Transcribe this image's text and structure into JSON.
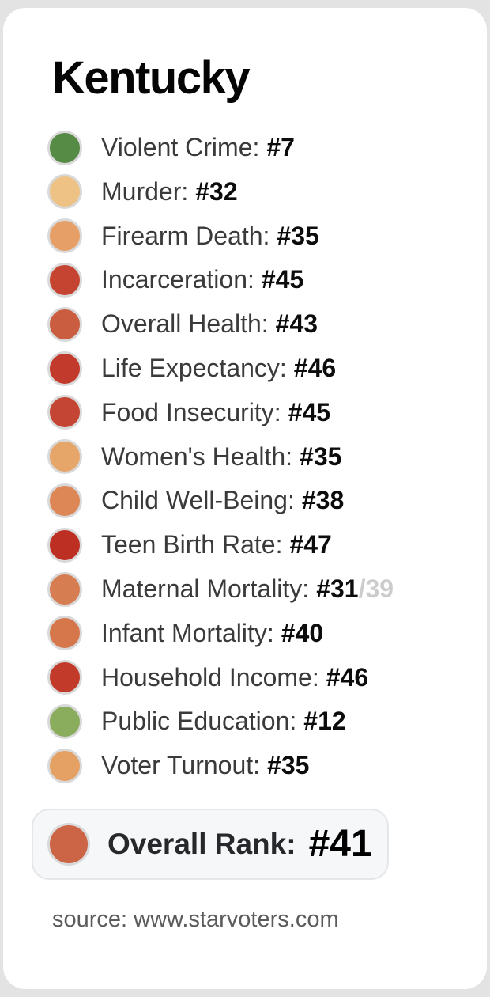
{
  "card": {
    "title": "Kentucky",
    "metrics": [
      {
        "label": "Violent Crime:",
        "rank": "#7",
        "color": "#568b45"
      },
      {
        "label": "Murder:",
        "rank": "#32",
        "color": "#eec284"
      },
      {
        "label": "Firearm Death:",
        "rank": "#35",
        "color": "#e6a067"
      },
      {
        "label": "Incarceration:",
        "rank": "#45",
        "color": "#c54431"
      },
      {
        "label": "Overall Health:",
        "rank": "#43",
        "color": "#ca5d40"
      },
      {
        "label": "Life Expectancy:",
        "rank": "#46",
        "color": "#c23a2b"
      },
      {
        "label": "Food Insecurity:",
        "rank": "#45",
        "color": "#c44533"
      },
      {
        "label": "Women's Health:",
        "rank": "#35",
        "color": "#e6a569"
      },
      {
        "label": "Child Well-Being:",
        "rank": "#38",
        "color": "#dd8756"
      },
      {
        "label": "Teen Birth Rate:",
        "rank": "#47",
        "color": "#be2f23"
      },
      {
        "label": "Maternal Mortality:",
        "rank": "#31",
        "rank_suffix": "/39",
        "color": "#d67d52"
      },
      {
        "label": "Infant Mortality:",
        "rank": "#40",
        "color": "#d5764b"
      },
      {
        "label": "Household Income:",
        "rank": "#46",
        "color": "#c13a2a"
      },
      {
        "label": "Public Education:",
        "rank": "#12",
        "color": "#8aac5d"
      },
      {
        "label": "Voter Turnout:",
        "rank": "#35",
        "color": "#e5a063"
      }
    ],
    "overall": {
      "label": "Overall Rank:",
      "rank": "#41",
      "color": "#cb6546"
    },
    "source": "source: www.starvoters.com"
  },
  "colors": {
    "page_background": "#e3e3e3",
    "card_background": "#ffffff",
    "dot_ring": "#d9d9d9",
    "label_text": "#3a3a3a",
    "rank_text": "#0c0c0c",
    "rank_suffix_gray": "#cccccc",
    "overall_box_background": "#f6f7f8",
    "overall_box_border": "#e4e6ea",
    "source_text": "#5b5b5b"
  },
  "chart_data": {
    "type": "table",
    "title": "Kentucky",
    "categories": [
      "Violent Crime",
      "Murder",
      "Firearm Death",
      "Incarceration",
      "Overall Health",
      "Life Expectancy",
      "Food Insecurity",
      "Women's Health",
      "Child Well-Being",
      "Teen Birth Rate",
      "Maternal Mortality",
      "Infant Mortality",
      "Household Income",
      "Public Education",
      "Voter Turnout"
    ],
    "values": [
      7,
      32,
      35,
      45,
      43,
      46,
      45,
      35,
      38,
      47,
      31,
      40,
      46,
      12,
      35
    ],
    "annotations": [
      "Maternal Mortality rank shown as #31/39"
    ],
    "overall_rank": 41,
    "legend_position": "none",
    "color_encoding": "green = good rank, orange = middling rank, red = poor rank",
    "source": "source: www.starvoters.com"
  }
}
